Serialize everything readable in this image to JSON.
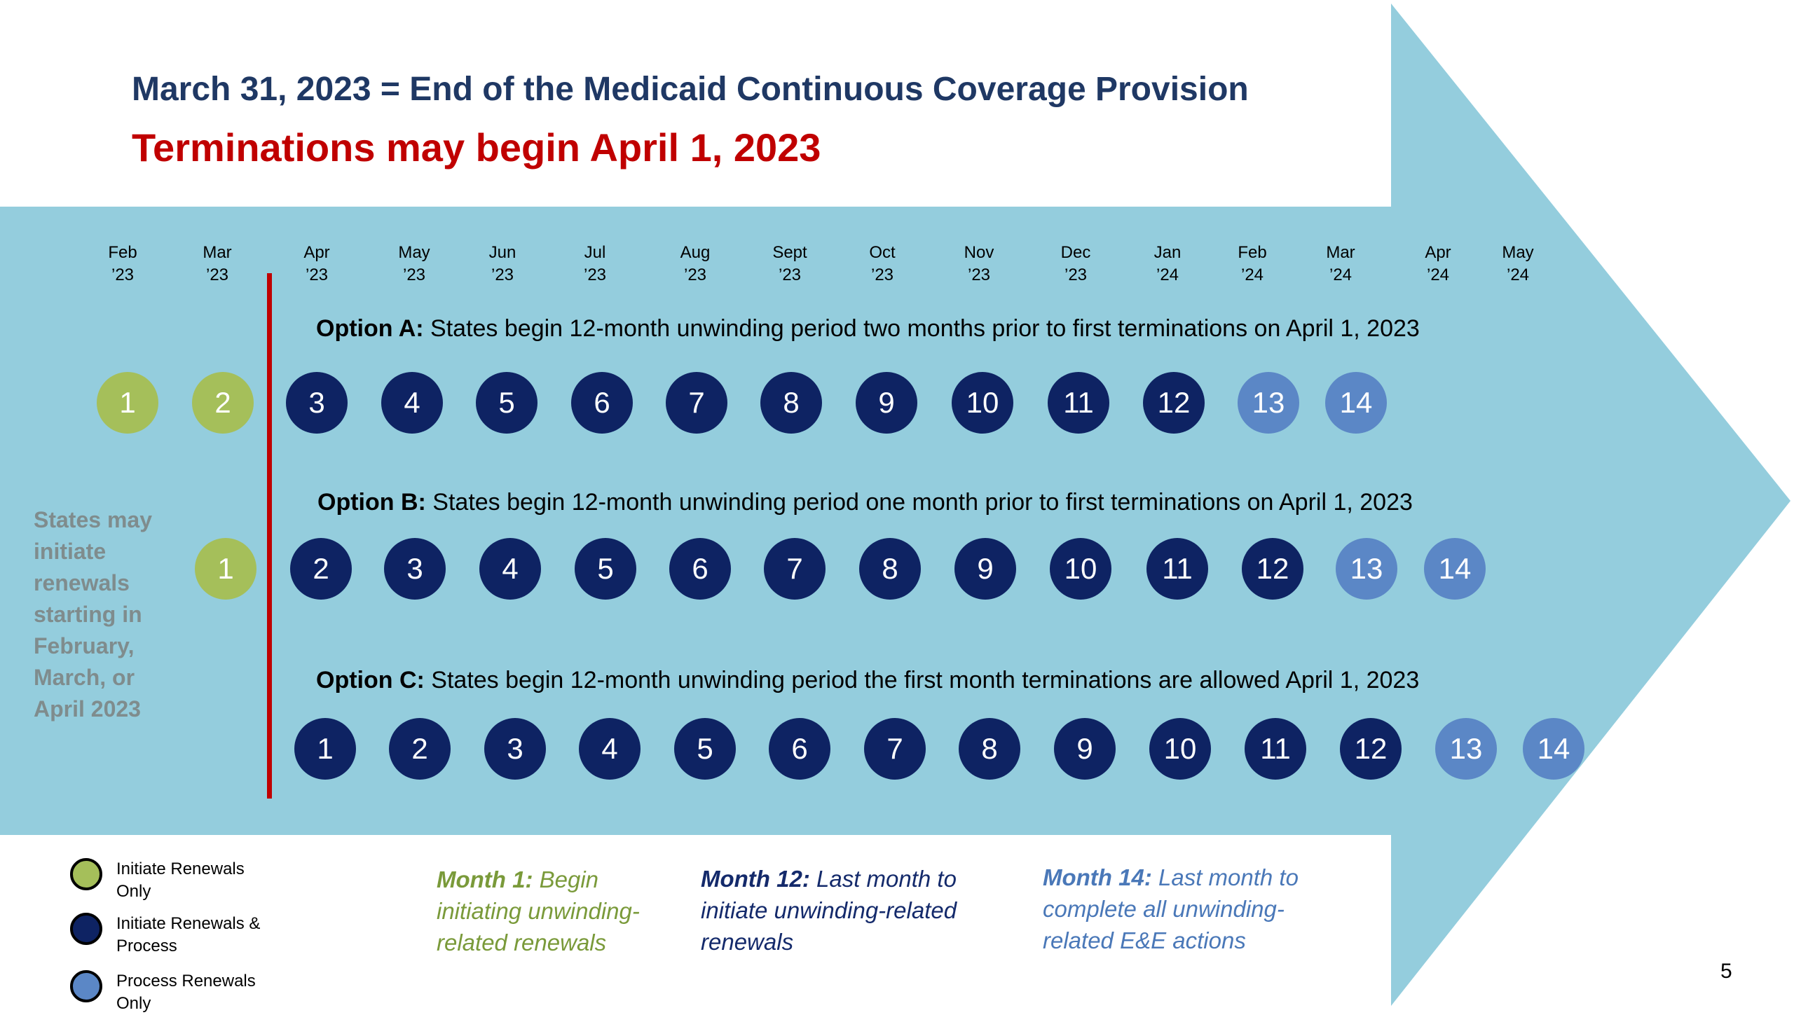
{
  "title": {
    "line1": "March 31, 2023 = End of the Medicaid Continuous Coverage Provision",
    "line2": "Terminations may begin April 1, 2023"
  },
  "months": [
    {
      "m": "Feb",
      "y": "’23"
    },
    {
      "m": "Mar",
      "y": "’23"
    },
    {
      "m": "Apr",
      "y": "’23"
    },
    {
      "m": "May",
      "y": "’23"
    },
    {
      "m": "Jun",
      "y": "’23"
    },
    {
      "m": "Jul",
      "y": "’23"
    },
    {
      "m": "Aug",
      "y": "’23"
    },
    {
      "m": "Sept",
      "y": "’23"
    },
    {
      "m": "Oct",
      "y": "’23"
    },
    {
      "m": "Nov",
      "y": "’23"
    },
    {
      "m": "Dec",
      "y": "’23"
    },
    {
      "m": "Jan",
      "y": "’24"
    },
    {
      "m": "Feb",
      "y": "’24"
    },
    {
      "m": "Mar",
      "y": "’24"
    },
    {
      "m": "Apr",
      "y": "’24"
    },
    {
      "m": "May",
      "y": "’24"
    }
  ],
  "options": [
    {
      "label": "Option A:",
      "text": " States begin 12-month unwinding period two months prior to first terminations on April 1, 2023",
      "circles": [
        {
          "n": "1",
          "kind": "green"
        },
        {
          "n": "2",
          "kind": "green"
        },
        {
          "n": "3",
          "kind": "navy"
        },
        {
          "n": "4",
          "kind": "navy"
        },
        {
          "n": "5",
          "kind": "navy"
        },
        {
          "n": "6",
          "kind": "navy"
        },
        {
          "n": "7",
          "kind": "navy"
        },
        {
          "n": "8",
          "kind": "navy"
        },
        {
          "n": "9",
          "kind": "navy"
        },
        {
          "n": "10",
          "kind": "navy"
        },
        {
          "n": "11",
          "kind": "navy"
        },
        {
          "n": "12",
          "kind": "navy"
        },
        {
          "n": "13",
          "kind": "blue"
        },
        {
          "n": "14",
          "kind": "blue"
        }
      ]
    },
    {
      "label": "Option B:",
      "text": " States begin 12-month unwinding period one month prior to first terminations on April 1, 2023",
      "circles": [
        {
          "n": "1",
          "kind": "green"
        },
        {
          "n": "2",
          "kind": "navy"
        },
        {
          "n": "3",
          "kind": "navy"
        },
        {
          "n": "4",
          "kind": "navy"
        },
        {
          "n": "5",
          "kind": "navy"
        },
        {
          "n": "6",
          "kind": "navy"
        },
        {
          "n": "7",
          "kind": "navy"
        },
        {
          "n": "8",
          "kind": "navy"
        },
        {
          "n": "9",
          "kind": "navy"
        },
        {
          "n": "10",
          "kind": "navy"
        },
        {
          "n": "11",
          "kind": "navy"
        },
        {
          "n": "12",
          "kind": "navy"
        },
        {
          "n": "13",
          "kind": "blue"
        },
        {
          "n": "14",
          "kind": "blue"
        }
      ]
    },
    {
      "label": "Option C:",
      "text": " States begin 12-month unwinding period the first month terminations are allowed April 1, 2023",
      "circles": [
        {
          "n": "1",
          "kind": "navy"
        },
        {
          "n": "2",
          "kind": "navy"
        },
        {
          "n": "3",
          "kind": "navy"
        },
        {
          "n": "4",
          "kind": "navy"
        },
        {
          "n": "5",
          "kind": "navy"
        },
        {
          "n": "6",
          "kind": "navy"
        },
        {
          "n": "7",
          "kind": "navy"
        },
        {
          "n": "8",
          "kind": "navy"
        },
        {
          "n": "9",
          "kind": "navy"
        },
        {
          "n": "10",
          "kind": "navy"
        },
        {
          "n": "11",
          "kind": "navy"
        },
        {
          "n": "12",
          "kind": "navy"
        },
        {
          "n": "13",
          "kind": "blue"
        },
        {
          "n": "14",
          "kind": "blue"
        }
      ]
    }
  ],
  "side_note": "States may initiate renewals starting in February, March, or April 2023",
  "legend": [
    {
      "kind": "green",
      "label": "Initiate Renewals Only"
    },
    {
      "kind": "navy",
      "label": "Initiate Renewals & Process"
    },
    {
      "kind": "blue",
      "label": "Process Renewals Only"
    }
  ],
  "notes": [
    {
      "kind": "green",
      "bold": "Month 1:",
      "text": " Begin initiating unwinding-related renewals"
    },
    {
      "kind": "navy",
      "bold": "Month 12:",
      "text": " Last month to initiate unwinding-related renewals"
    },
    {
      "kind": "blue",
      "bold": "Month 14:",
      "text": " Last month to complete all unwinding-related E&E actions"
    }
  ],
  "colors": {
    "arrow": "#94cddd",
    "green": "#a5bf5a",
    "navy": "#0e2363",
    "blue": "#5b87c6",
    "title": "#1f3864",
    "red": "#c00000"
  },
  "page_number": "5"
}
